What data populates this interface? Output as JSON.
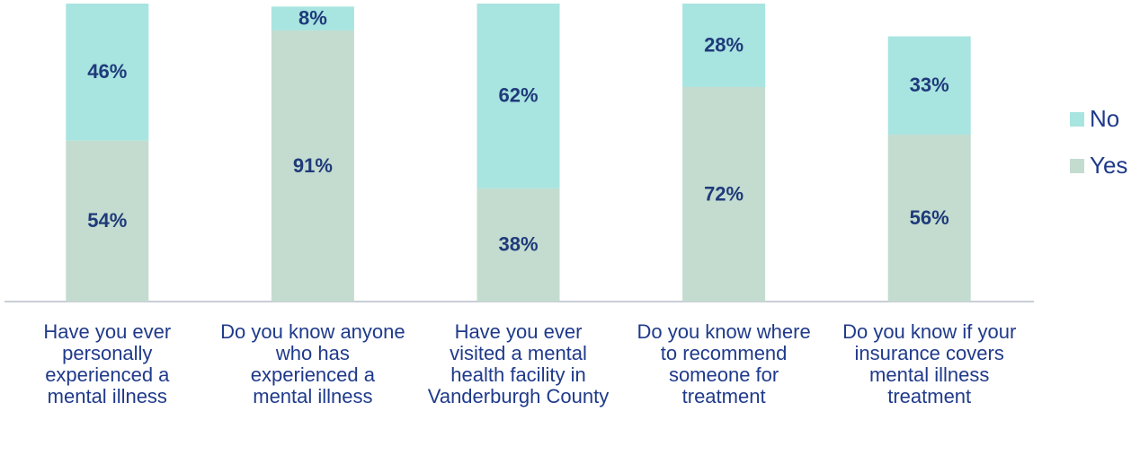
{
  "chart_data": {
    "type": "stacked_bar",
    "categories": [
      "Have you ever personally experienced a mental illness",
      "Do you know anyone who has experienced a mental illness",
      "Have you ever visited a mental health facility in Vanderburgh County",
      "Do you know where to recommend someone for treatment",
      "Do you know if your insurance covers mental illness treatment"
    ],
    "series": [
      {
        "name": "Yes",
        "color": "#c3dccf",
        "values": [
          54,
          91,
          38,
          72,
          56
        ],
        "value_labels": [
          "54%",
          "91%",
          "38%",
          "72%",
          "56%"
        ]
      },
      {
        "name": "No",
        "color": "#a8e4e0",
        "values": [
          46,
          8,
          62,
          28,
          33
        ],
        "value_labels": [
          "46%",
          "8%",
          "62%",
          "28%",
          "33%"
        ]
      }
    ],
    "ylim": [
      0,
      100
    ],
    "legend": "right"
  }
}
